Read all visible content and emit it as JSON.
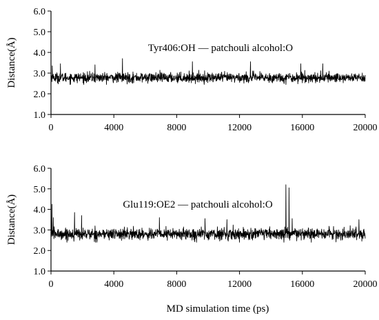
{
  "shared_xlabel": "MD simulation time (ps)",
  "chart_data": [
    {
      "type": "line",
      "annotation": "Tyr406:OH — patchouli alcohol:O",
      "ylabel": "Distance(Å)",
      "xlim": [
        0,
        20000
      ],
      "ylim": [
        1.0,
        6.0
      ],
      "xticks": [
        0,
        4000,
        8000,
        12000,
        16000,
        20000
      ],
      "xtick_labels": [
        "0",
        "4000",
        "8000",
        "12000",
        "16000",
        "20000"
      ],
      "yticks": [
        1.0,
        2.0,
        3.0,
        4.0,
        5.0,
        6.0
      ],
      "ytick_labels": [
        "1.0",
        "2.0",
        "3.0",
        "4.0",
        "5.0",
        "6.0"
      ],
      "grid": false,
      "line_color": "#000000",
      "series": [
        {
          "trace": {
            "x_start": 0,
            "x_end": 20000,
            "n_points": 1400,
            "mean": 2.78,
            "sd": 0.12,
            "min": 2.45,
            "max": 3.5
          },
          "spikes": [
            {
              "x": 80,
              "y": 3.35
            },
            {
              "x": 600,
              "y": 3.45
            },
            {
              "x": 2800,
              "y": 3.4
            },
            {
              "x": 4550,
              "y": 3.7
            },
            {
              "x": 9000,
              "y": 3.55
            },
            {
              "x": 12700,
              "y": 3.55
            },
            {
              "x": 15900,
              "y": 3.45
            },
            {
              "x": 17300,
              "y": 3.45
            }
          ]
        }
      ]
    },
    {
      "type": "line",
      "annotation": "Glu119:OE2 — patchouli alcohol:O",
      "ylabel": "Distance(Å)",
      "xlim": [
        0,
        20000
      ],
      "ylim": [
        1.0,
        6.0
      ],
      "xticks": [
        0,
        4000,
        8000,
        12000,
        16000,
        20000
      ],
      "xtick_labels": [
        "0",
        "4000",
        "8000",
        "12000",
        "16000",
        "20000"
      ],
      "yticks": [
        1.0,
        2.0,
        3.0,
        4.0,
        5.0,
        6.0
      ],
      "ytick_labels": [
        "1.0",
        "2.0",
        "3.0",
        "4.0",
        "5.0",
        "6.0"
      ],
      "grid": false,
      "line_color": "#000000",
      "series": [
        {
          "trace": {
            "x_start": 0,
            "x_end": 20000,
            "n_points": 1400,
            "mean": 2.8,
            "sd": 0.14,
            "min": 2.4,
            "max": 3.5
          },
          "spikes": [
            {
              "x": 60,
              "y": 4.25
            },
            {
              "x": 150,
              "y": 3.6
            },
            {
              "x": 1500,
              "y": 3.85
            },
            {
              "x": 1950,
              "y": 3.7
            },
            {
              "x": 6900,
              "y": 3.6
            },
            {
              "x": 9800,
              "y": 3.55
            },
            {
              "x": 11200,
              "y": 3.5
            },
            {
              "x": 14950,
              "y": 5.2
            },
            {
              "x": 15150,
              "y": 5.05
            },
            {
              "x": 15350,
              "y": 3.55
            },
            {
              "x": 19600,
              "y": 3.5
            }
          ]
        }
      ]
    }
  ]
}
